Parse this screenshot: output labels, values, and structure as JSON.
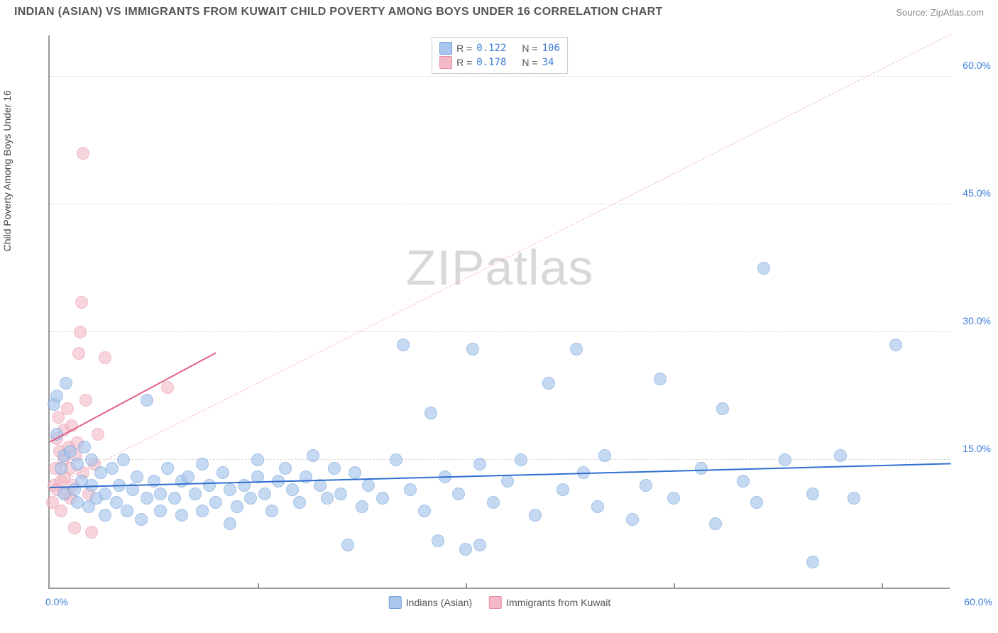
{
  "title": "INDIAN (ASIAN) VS IMMIGRANTS FROM KUWAIT CHILD POVERTY AMONG BOYS UNDER 16 CORRELATION CHART",
  "source": "Source: ZipAtlas.com",
  "ylabel": "Child Poverty Among Boys Under 16",
  "watermark": "ZIPatlas",
  "axes": {
    "xmin": 0.0,
    "xmax": 65.0,
    "ymin": 0.0,
    "ymax": 65.0,
    "grid_color": "#dddddd",
    "axis_color": "#999999",
    "yticks": [
      15.0,
      30.0,
      45.0,
      60.0
    ],
    "ytick_labels": [
      "15.0%",
      "30.0%",
      "45.0%",
      "60.0%"
    ],
    "xtick_left": "0.0%",
    "xtick_right": "60.0%",
    "tick_label_color": "#3b7dd8"
  },
  "legend_top": {
    "rows": [
      {
        "swatch_fill": "#a9c6ec",
        "swatch_stroke": "#6fa0db",
        "r_label": "R =",
        "r_val": "0.122",
        "n_label": "N =",
        "n_val": "106"
      },
      {
        "swatch_fill": "#f4b9c6",
        "swatch_stroke": "#e58fa4",
        "r_label": "R =",
        "r_val": "0.178",
        "n_label": "N =",
        "n_val": " 34"
      }
    ]
  },
  "bottom_legend": {
    "items": [
      {
        "swatch_fill": "#a9c6ec",
        "swatch_stroke": "#6fa0db",
        "label": "Indians (Asian)"
      },
      {
        "swatch_fill": "#f4b9c6",
        "swatch_stroke": "#e58fa4",
        "label": "Immigrants from Kuwait"
      }
    ]
  },
  "series": {
    "blue": {
      "fill": "#a9c6ec",
      "stroke": "#6fa0db",
      "opacity": 0.65,
      "radius": 9,
      "trend": {
        "x1": 0,
        "y1": 11.7,
        "x2": 65,
        "y2": 14.5,
        "color": "#2f6fd0",
        "width": 2,
        "dash": "solid"
      },
      "ext": {
        "x1": 0,
        "y1": 11.7,
        "x2": 65,
        "y2": 65,
        "color": "#f4b9c6",
        "width": 1,
        "dash": "dashed"
      },
      "points": [
        [
          0.3,
          21.5
        ],
        [
          0.5,
          22.5
        ],
        [
          0.5,
          18.0
        ],
        [
          0.8,
          14.0
        ],
        [
          1.0,
          15.5
        ],
        [
          1.0,
          11.0
        ],
        [
          1.2,
          24.0
        ],
        [
          1.5,
          16.0
        ],
        [
          1.8,
          11.5
        ],
        [
          2.0,
          14.5
        ],
        [
          2.0,
          10.0
        ],
        [
          2.3,
          12.5
        ],
        [
          2.5,
          16.5
        ],
        [
          2.8,
          9.5
        ],
        [
          3.0,
          15.0
        ],
        [
          3.0,
          12.0
        ],
        [
          3.4,
          10.5
        ],
        [
          3.7,
          13.5
        ],
        [
          4.0,
          11.0
        ],
        [
          4.0,
          8.5
        ],
        [
          4.5,
          14.0
        ],
        [
          4.8,
          10.0
        ],
        [
          5.0,
          12.0
        ],
        [
          5.3,
          15.0
        ],
        [
          5.6,
          9.0
        ],
        [
          6.0,
          11.5
        ],
        [
          6.3,
          13.0
        ],
        [
          6.6,
          8.0
        ],
        [
          7.0,
          10.5
        ],
        [
          7.0,
          22.0
        ],
        [
          7.5,
          12.5
        ],
        [
          8.0,
          11.0
        ],
        [
          8.0,
          9.0
        ],
        [
          8.5,
          14.0
        ],
        [
          9.0,
          10.5
        ],
        [
          9.5,
          12.5
        ],
        [
          9.5,
          8.5
        ],
        [
          10.0,
          13.0
        ],
        [
          10.5,
          11.0
        ],
        [
          11.0,
          9.0
        ],
        [
          11.0,
          14.5
        ],
        [
          11.5,
          12.0
        ],
        [
          12.0,
          10.0
        ],
        [
          12.5,
          13.5
        ],
        [
          13.0,
          11.5
        ],
        [
          13.0,
          7.5
        ],
        [
          13.5,
          9.5
        ],
        [
          14.0,
          12.0
        ],
        [
          14.5,
          10.5
        ],
        [
          15.0,
          15.0
        ],
        [
          15.0,
          13.0
        ],
        [
          15.5,
          11.0
        ],
        [
          16.0,
          9.0
        ],
        [
          16.5,
          12.5
        ],
        [
          17.0,
          14.0
        ],
        [
          17.5,
          11.5
        ],
        [
          18.0,
          10.0
        ],
        [
          18.5,
          13.0
        ],
        [
          19.0,
          15.5
        ],
        [
          19.5,
          12.0
        ],
        [
          20.0,
          10.5
        ],
        [
          20.5,
          14.0
        ],
        [
          21.0,
          11.0
        ],
        [
          21.5,
          5.0
        ],
        [
          22.0,
          13.5
        ],
        [
          22.5,
          9.5
        ],
        [
          23.0,
          12.0
        ],
        [
          24.0,
          10.5
        ],
        [
          25.0,
          15.0
        ],
        [
          25.5,
          28.5
        ],
        [
          26.0,
          11.5
        ],
        [
          27.0,
          9.0
        ],
        [
          27.5,
          20.5
        ],
        [
          28.0,
          5.5
        ],
        [
          28.5,
          13.0
        ],
        [
          29.5,
          11.0
        ],
        [
          30.0,
          4.5
        ],
        [
          30.5,
          28.0
        ],
        [
          31.0,
          14.5
        ],
        [
          31.0,
          5.0
        ],
        [
          32.0,
          10.0
        ],
        [
          33.0,
          12.5
        ],
        [
          34.0,
          15.0
        ],
        [
          35.0,
          8.5
        ],
        [
          36.0,
          24.0
        ],
        [
          37.0,
          11.5
        ],
        [
          38.0,
          28.0
        ],
        [
          38.5,
          13.5
        ],
        [
          39.5,
          9.5
        ],
        [
          40.0,
          15.5
        ],
        [
          42.0,
          8.0
        ],
        [
          43.0,
          12.0
        ],
        [
          44.0,
          24.5
        ],
        [
          45.0,
          10.5
        ],
        [
          47.0,
          14.0
        ],
        [
          48.0,
          7.5
        ],
        [
          48.5,
          21.0
        ],
        [
          50.0,
          12.5
        ],
        [
          51.0,
          10.0
        ],
        [
          51.5,
          37.5
        ],
        [
          53.0,
          15.0
        ],
        [
          55.0,
          11.0
        ],
        [
          55.0,
          3.0
        ],
        [
          57.0,
          15.5
        ],
        [
          58.0,
          10.5
        ],
        [
          61.0,
          28.5
        ]
      ]
    },
    "pink": {
      "fill": "#f4b9c6",
      "stroke": "#e58fa4",
      "opacity": 0.6,
      "radius": 9,
      "trend": {
        "x1": 0,
        "y1": 17.0,
        "x2": 12,
        "y2": 27.5,
        "color": "#e06182",
        "width": 2,
        "dash": "solid"
      },
      "points": [
        [
          0.2,
          10.0
        ],
        [
          0.3,
          12.0
        ],
        [
          0.4,
          14.0
        ],
        [
          0.5,
          17.5
        ],
        [
          0.5,
          11.5
        ],
        [
          0.6,
          20.0
        ],
        [
          0.7,
          16.0
        ],
        [
          0.8,
          12.5
        ],
        [
          0.8,
          9.0
        ],
        [
          1.0,
          15.0
        ],
        [
          1.0,
          18.5
        ],
        [
          1.1,
          13.0
        ],
        [
          1.2,
          11.0
        ],
        [
          1.3,
          21.0
        ],
        [
          1.4,
          16.5
        ],
        [
          1.5,
          14.0
        ],
        [
          1.5,
          10.5
        ],
        [
          1.6,
          19.0
        ],
        [
          1.7,
          12.0
        ],
        [
          1.8,
          7.0
        ],
        [
          1.9,
          15.5
        ],
        [
          2.0,
          17.0
        ],
        [
          2.1,
          27.5
        ],
        [
          2.2,
          30.0
        ],
        [
          2.3,
          33.5
        ],
        [
          2.4,
          13.5
        ],
        [
          2.6,
          22.0
        ],
        [
          2.8,
          11.0
        ],
        [
          2.4,
          51.0
        ],
        [
          3.0,
          6.5
        ],
        [
          3.2,
          14.5
        ],
        [
          3.5,
          18.0
        ],
        [
          4.0,
          27.0
        ],
        [
          8.5,
          23.5
        ]
      ]
    }
  }
}
